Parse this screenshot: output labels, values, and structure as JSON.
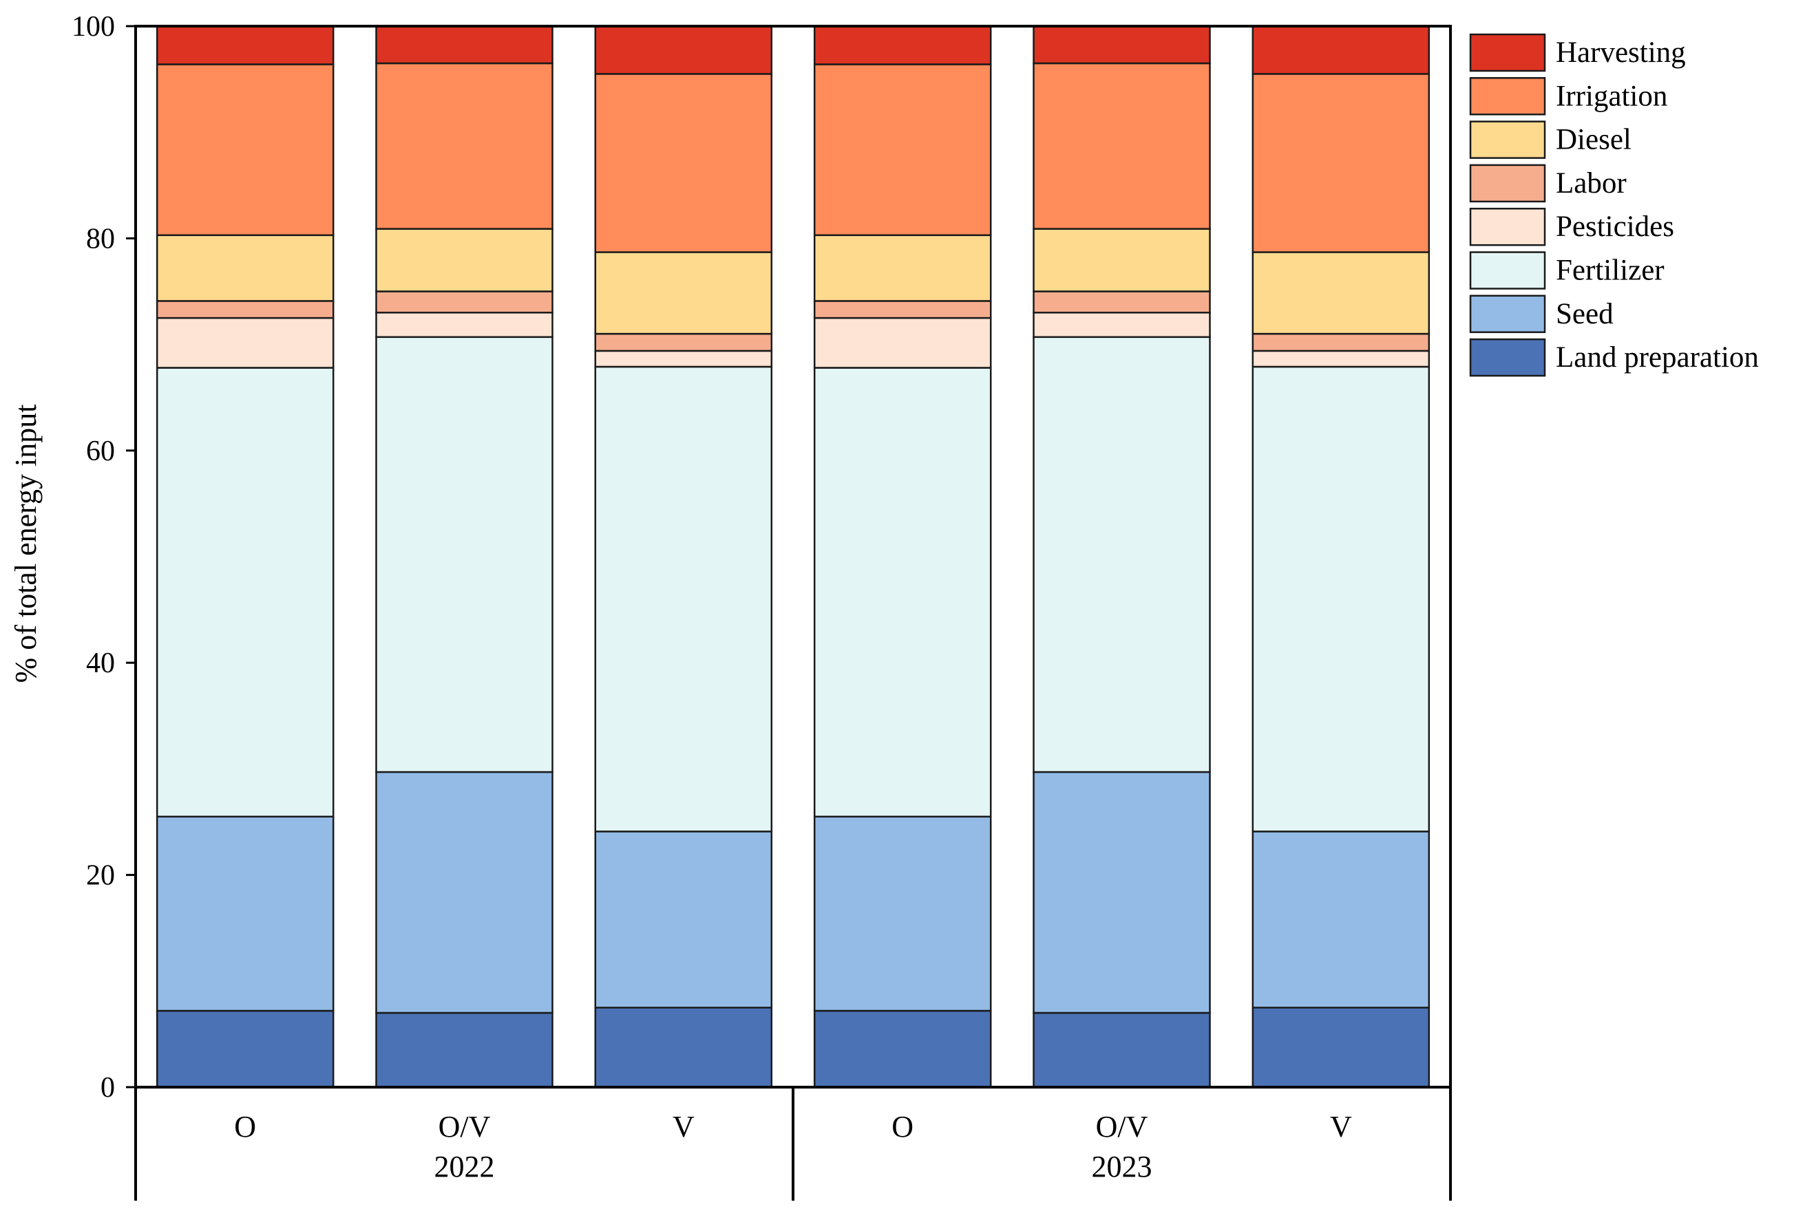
{
  "chart_data": {
    "type": "bar",
    "stacked": true,
    "title": "",
    "xlabel": "",
    "ylabel": "% of total energy input",
    "ylim": [
      0,
      100
    ],
    "yticks": [
      0,
      20,
      40,
      60,
      80,
      100
    ],
    "grid": false,
    "legend_position": "right",
    "groups": [
      {
        "label": "2022",
        "categories": [
          "O",
          "O/V",
          "V"
        ]
      },
      {
        "label": "2023",
        "categories": [
          "O",
          "O/V",
          "V"
        ]
      }
    ],
    "categories": [
      "O",
      "O/V",
      "V",
      "O",
      "O/V",
      "V"
    ],
    "series": [
      {
        "name": "Land preparation",
        "color": "#4a72b5",
        "values": [
          7.2,
          7.0,
          7.5,
          7.2,
          7.0,
          7.5
        ]
      },
      {
        "name": "Seed",
        "color": "#93bbe6",
        "values": [
          18.3,
          22.7,
          16.6,
          18.3,
          22.7,
          16.6
        ]
      },
      {
        "name": "Fertilizer",
        "color": "#e4f5f5",
        "values": [
          42.3,
          41.0,
          43.8,
          42.3,
          41.0,
          43.8
        ]
      },
      {
        "name": "Pesticides",
        "color": "#fde4d4",
        "values": [
          4.7,
          2.3,
          1.5,
          4.7,
          2.3,
          1.5
        ]
      },
      {
        "name": "Labor",
        "color": "#f6ad8e",
        "values": [
          1.6,
          2.0,
          1.6,
          1.6,
          2.0,
          1.6
        ]
      },
      {
        "name": "Diesel",
        "color": "#feda8e",
        "values": [
          6.2,
          5.9,
          7.7,
          6.2,
          5.9,
          7.7
        ]
      },
      {
        "name": "Irrigation",
        "color": "#ff8c5a",
        "values": [
          16.1,
          15.6,
          16.8,
          16.1,
          15.6,
          16.8
        ]
      },
      {
        "name": "Harvesting",
        "color": "#dd3322",
        "values": [
          3.6,
          3.5,
          4.5,
          3.6,
          3.5,
          4.5
        ]
      }
    ],
    "legend_order": [
      "Harvesting",
      "Irrigation",
      "Diesel",
      "Labor",
      "Pesticides",
      "Fertilizer",
      "Seed",
      "Land preparation"
    ]
  }
}
